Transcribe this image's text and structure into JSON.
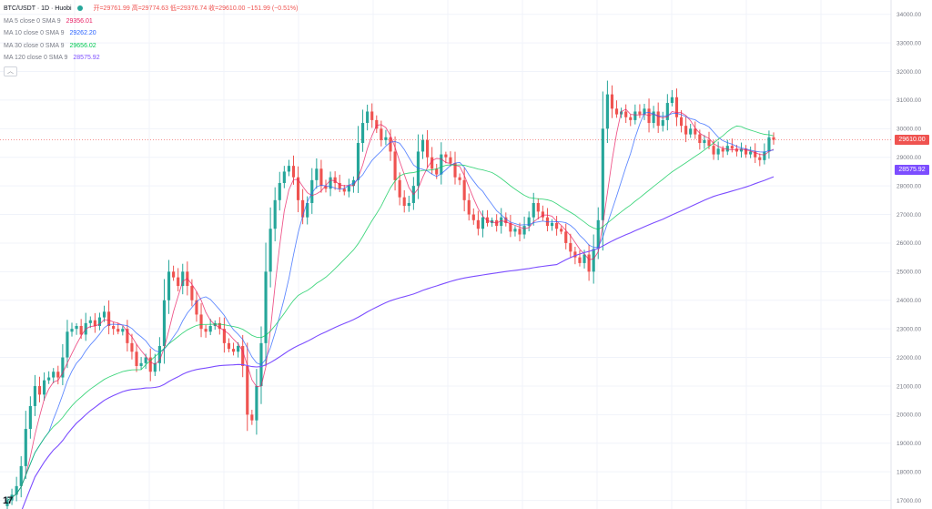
{
  "header": {
    "title": "BTC/USDT · 1D · Huobi",
    "ohlc": "开=29761.99 高=29774.63 低=29376.74 收=29610.00 −151.99 (−0.51%)"
  },
  "indicators": [
    {
      "label": "MA 5 close 0 SMA 9",
      "value": "29356.01",
      "color": "#e91e63"
    },
    {
      "label": "MA 10 close 0 SMA 9",
      "value": "29262.20",
      "color": "#2962ff"
    },
    {
      "label": "MA 30 close 0 SMA 9",
      "value": "29656.02",
      "color": "#00c853"
    },
    {
      "label": "MA 120 close 0 SMA 9",
      "value": "28575.92",
      "color": "#7c4dff"
    }
  ],
  "collapse_glyph": "︿",
  "price_tags": {
    "last": {
      "text": "29610.00",
      "color": "#ef5350"
    },
    "ma120": {
      "text": "28575.92",
      "color": "#7c4dff"
    }
  },
  "logo_text": "17",
  "colors": {
    "up": "#26a69a",
    "down": "#ef5350",
    "grid": "#f0f3fa"
  },
  "chart_data": {
    "type": "candlestick",
    "title": "BTC/USDT · 1D · Huobi",
    "y_ticks": [
      17000,
      18000,
      19000,
      20000,
      21000,
      22000,
      23000,
      24000,
      25000,
      26000,
      27000,
      28000,
      29000,
      30000,
      31000,
      32000,
      33000,
      34000
    ],
    "ylim": [
      16700,
      34500
    ],
    "last_price": 29610.0,
    "closes": [
      17000,
      17200,
      17500,
      18200,
      19500,
      20300,
      21000,
      20700,
      21200,
      21300,
      21500,
      21300,
      22000,
      22900,
      23000,
      23100,
      22800,
      23200,
      23300,
      23100,
      23400,
      23600,
      23100,
      23000,
      22900,
      23000,
      22500,
      22200,
      21700,
      21800,
      22000,
      21500,
      21800,
      22400,
      24000,
      25000,
      24800,
      24500,
      25000,
      24500,
      24000,
      23500,
      23000,
      22900,
      23100,
      23200,
      23000,
      22500,
      22300,
      22200,
      22400,
      21700,
      20000,
      19800,
      21000,
      22500,
      25000,
      26500,
      27500,
      28100,
      28500,
      28700,
      28300,
      27500,
      26900,
      27400,
      28200,
      28600,
      28000,
      27900,
      28300,
      28100,
      27900,
      27800,
      28000,
      28200,
      29500,
      30200,
      30600,
      30300,
      30000,
      29600,
      29700,
      29200,
      28200,
      27600,
      27300,
      27400,
      28000,
      29200,
      29600,
      29000,
      28600,
      28400,
      29100,
      29000,
      28800,
      28300,
      28200,
      27500,
      27000,
      26800,
      26500,
      26900,
      26700,
      26800,
      26600,
      26900,
      26700,
      26400,
      26500,
      26300,
      26600,
      26900,
      27400,
      27100,
      26900,
      26600,
      26700,
      26500,
      26400,
      26000,
      25700,
      25500,
      25300,
      25600,
      25000,
      25800,
      26800,
      30000,
      31200,
      30700,
      30500,
      30600,
      30400,
      30300,
      30600,
      30500,
      30700,
      30200,
      30600,
      30100,
      30300,
      30900,
      31100,
      30400,
      30100,
      29800,
      30000,
      29800,
      29500,
      29600,
      29400,
      29100,
      29300,
      29200,
      29400,
      29300,
      29200,
      29300,
      29100,
      29200,
      29000,
      28900,
      29200,
      29700,
      29610
    ]
  }
}
